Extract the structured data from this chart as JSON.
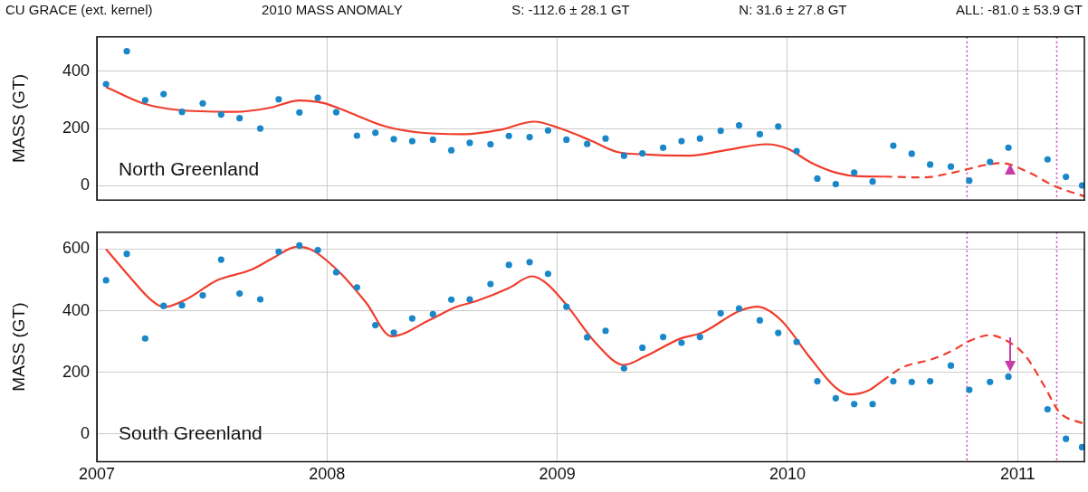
{
  "chart_data": [
    {
      "type": "scatter",
      "title": "North Greenland",
      "ylabel": "MASS (GT)",
      "annotations": [
        "CU GRACE (ext. kernel)",
        "2010 MASS ANOMALY",
        "S:  -112.6 ± 28.1 GT",
        "N:  31.6 ± 27.8 GT",
        "ALL:  -81.0 ± 53.9 GT"
      ],
      "xlim": [
        2007,
        2011.29
      ],
      "xticks": [
        2007,
        2008,
        2009,
        2010,
        2011
      ],
      "ylim": [
        -50,
        520
      ],
      "yticks": [
        0,
        200,
        400
      ],
      "grid": true,
      "legend": false,
      "tick_labels": "y",
      "ref_lines": [
        {
          "axis": "x",
          "value": 2010.78,
          "color": "#cc44bb",
          "line_style": "dotted"
        },
        {
          "axis": "x",
          "value": 2011.17,
          "color": "#cc44bb",
          "line_style": "dotted"
        }
      ],
      "series": [
        {
          "type": "scatter",
          "color": "#1a87c9",
          "marker": "circle",
          "x": [
            2007.04,
            2007.13,
            2007.21,
            2007.29,
            2007.37,
            2007.46,
            2007.54,
            2007.62,
            2007.71,
            2007.79,
            2007.88,
            2007.96,
            2008.04,
            2008.13,
            2008.21,
            2008.29,
            2008.37,
            2008.46,
            2008.54,
            2008.62,
            2008.71,
            2008.79,
            2008.88,
            2008.96,
            2009.04,
            2009.13,
            2009.21,
            2009.29,
            2009.37,
            2009.46,
            2009.54,
            2009.62,
            2009.71,
            2009.79,
            2009.88,
            2009.96,
            2010.04,
            2010.13,
            2010.21,
            2010.29,
            2010.37,
            2010.46,
            2010.54,
            2010.62,
            2010.71,
            2010.79,
            2010.88,
            2010.96,
            2011.13,
            2011.21,
            2011.28
          ],
          "values": [
            355,
            470,
            299,
            320,
            258,
            288,
            249,
            236,
            200,
            302,
            256,
            307,
            257,
            175,
            185,
            163,
            156,
            161,
            124,
            150,
            145,
            174,
            170,
            193,
            161,
            146,
            165,
            105,
            113,
            133,
            156,
            165,
            192,
            211,
            180,
            207,
            121,
            25,
            6,
            46,
            15,
            140,
            112,
            74,
            67,
            18,
            83,
            133,
            92,
            31,
            1
          ]
        },
        {
          "type": "line",
          "color": "#f03c2c",
          "marker": "none",
          "line_style": "solid",
          "x": [
            2007.04,
            2007.2,
            2007.35,
            2007.6,
            2007.75,
            2007.88,
            2007.98,
            2008.1,
            2008.25,
            2008.4,
            2008.6,
            2008.75,
            2008.9,
            2009.01,
            2009.14,
            2009.26,
            2009.37,
            2009.57,
            2009.73,
            2009.91,
            2010.0,
            2010.1,
            2010.21,
            2010.31,
            2010.42
          ],
          "values": [
            345,
            288,
            265,
            258,
            272,
            298,
            290,
            255,
            208,
            186,
            180,
            195,
            224,
            201,
            160,
            118,
            110,
            105,
            124,
            145,
            130,
            82,
            46,
            33,
            32
          ]
        },
        {
          "type": "line",
          "color": "#f03c2c",
          "marker": "none",
          "line_style": "dashed",
          "x": [
            2010.42,
            2010.59,
            2010.72,
            2010.87,
            2010.93,
            2011.05,
            2011.16,
            2011.29
          ],
          "values": [
            32,
            29,
            46,
            74,
            79,
            46,
            -1,
            -37
          ]
        }
      ]
    },
    {
      "type": "scatter",
      "title": "South Greenland",
      "ylabel": "MASS (GT)",
      "xlim": [
        2007,
        2011.29
      ],
      "xticks": [
        2007,
        2008,
        2009,
        2010,
        2011
      ],
      "ylim": [
        -90,
        655
      ],
      "yticks": [
        0,
        200,
        400,
        600
      ],
      "grid": true,
      "legend": false,
      "ref_lines": [
        {
          "axis": "x",
          "value": 2010.78,
          "color": "#cc44bb",
          "line_style": "dotted"
        },
        {
          "axis": "x",
          "value": 2011.17,
          "color": "#cc44bb",
          "line_style": "dotted"
        }
      ],
      "series": [
        {
          "type": "scatter",
          "color": "#1a87c9",
          "marker": "circle",
          "x": [
            2007.04,
            2007.13,
            2007.21,
            2007.29,
            2007.37,
            2007.46,
            2007.54,
            2007.62,
            2007.71,
            2007.79,
            2007.88,
            2007.96,
            2008.04,
            2008.13,
            2008.21,
            2008.29,
            2008.37,
            2008.46,
            2008.54,
            2008.62,
            2008.71,
            2008.79,
            2008.88,
            2008.96,
            2009.04,
            2009.13,
            2009.21,
            2009.29,
            2009.37,
            2009.46,
            2009.54,
            2009.62,
            2009.71,
            2009.79,
            2009.88,
            2009.96,
            2010.04,
            2010.13,
            2010.21,
            2010.29,
            2010.37,
            2010.46,
            2010.54,
            2010.62,
            2010.71,
            2010.79,
            2010.88,
            2010.96,
            2011.13,
            2011.21,
            2011.28
          ],
          "values": [
            499,
            585,
            310,
            416,
            418,
            450,
            566,
            456,
            437,
            592,
            612,
            597,
            525,
            476,
            353,
            329,
            375,
            389,
            436,
            437,
            487,
            549,
            558,
            520,
            413,
            314,
            335,
            213,
            280,
            315,
            296,
            315,
            392,
            407,
            369,
            328,
            299,
            171,
            116,
            97,
            97,
            171,
            169,
            171,
            222,
            143,
            169,
            186,
            80,
            -16,
            -43
          ]
        },
        {
          "type": "line",
          "color": "#f03c2c",
          "marker": "none",
          "line_style": "solid",
          "x": [
            2007.04,
            2007.13,
            2007.24,
            2007.29,
            2007.39,
            2007.52,
            2007.67,
            2007.76,
            2007.87,
            2007.93,
            2008.06,
            2008.17,
            2008.28,
            2008.45,
            2008.56,
            2008.65,
            2008.79,
            2008.89,
            2008.95,
            2009.04,
            2009.17,
            2009.29,
            2009.38,
            2009.54,
            2009.63,
            2009.79,
            2009.87,
            2009.97,
            2010.1,
            2010.21,
            2010.27,
            2010.35,
            2010.41
          ],
          "values": [
            600,
            521,
            432,
            412,
            438,
            498,
            533,
            569,
            608,
            599,
            521,
            426,
            317,
            372,
            412,
            432,
            474,
            512,
            491,
            419,
            293,
            224,
            251,
            311,
            329,
            399,
            413,
            371,
            246,
            150,
            128,
            140,
            171
          ]
        },
        {
          "type": "line",
          "color": "#f03c2c",
          "marker": "none",
          "line_style": "dashed",
          "x": [
            2010.41,
            2010.5,
            2010.63,
            2010.72,
            2010.8,
            2010.88,
            2010.93,
            2011.03,
            2011.12,
            2011.18,
            2011.29
          ],
          "values": [
            171,
            216,
            243,
            272,
            305,
            321,
            311,
            257,
            150,
            72,
            32
          ]
        }
      ]
    }
  ]
}
